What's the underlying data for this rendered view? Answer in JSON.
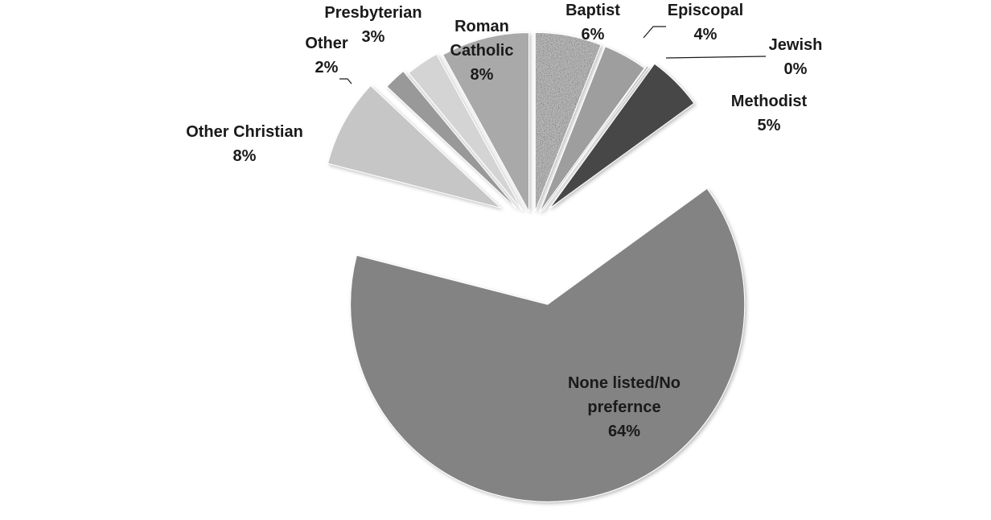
{
  "chart_data": {
    "type": "pie",
    "exploded": true,
    "legend": "none",
    "categories": [
      "Baptist",
      "Episcopal",
      "Jewish",
      "Methodist",
      "None listed/No prefernce",
      "Other Christian",
      "Other",
      "Presbyterian",
      "Roman Catholic"
    ],
    "values": [
      6,
      4,
      0,
      5,
      64,
      8,
      2,
      3,
      8
    ],
    "value_labels": [
      "6%",
      "4%",
      "0%",
      "5%",
      "64%",
      "8%",
      "2%",
      "3%",
      "8%"
    ],
    "label_lines": [
      [
        "Baptist"
      ],
      [
        "Episcopal"
      ],
      [
        "Jewish"
      ],
      [
        "Methodist"
      ],
      [
        "None listed/No",
        "prefernce"
      ],
      [
        "Other Christian"
      ],
      [
        "Other"
      ],
      [
        "Presbyterian"
      ],
      [
        "Roman",
        "Catholic"
      ]
    ],
    "colors": [
      "#b4b4b4",
      "#9e9e9e",
      "#b8b8b8",
      "#464646",
      "#838383",
      "#c6c6c6",
      "#999999",
      "#d4d4d4",
      "#a9a9a9"
    ]
  }
}
